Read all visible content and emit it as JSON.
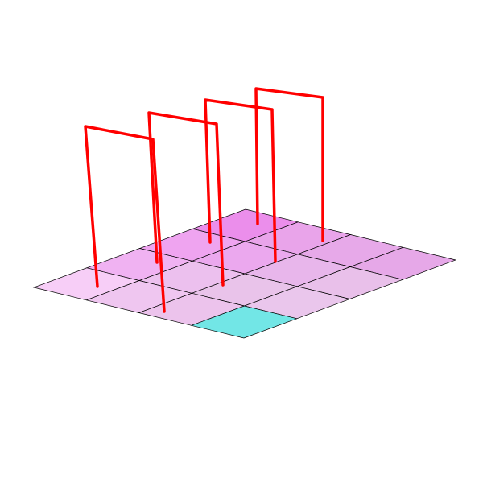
{
  "board": {
    "rows": 4,
    "cols": 4,
    "cells": [
      [
        "#eb8eeb",
        "#e9a4ea",
        "#e7a9e9",
        "#e6a8e8"
      ],
      [
        "#efa4f0",
        "#eba8ee",
        "#e8b6eb",
        "#e9c0ea"
      ],
      [
        "#f0b2f2",
        "#ecc0ee",
        "#e9c3ea",
        "#eac6ec"
      ],
      [
        "#f7cef7",
        "#efc6f0",
        "#ecc3ec",
        "#72e6e6"
      ]
    ],
    "grid_color": "#000000"
  },
  "arches": {
    "color": "#ff0000",
    "count": 4
  }
}
